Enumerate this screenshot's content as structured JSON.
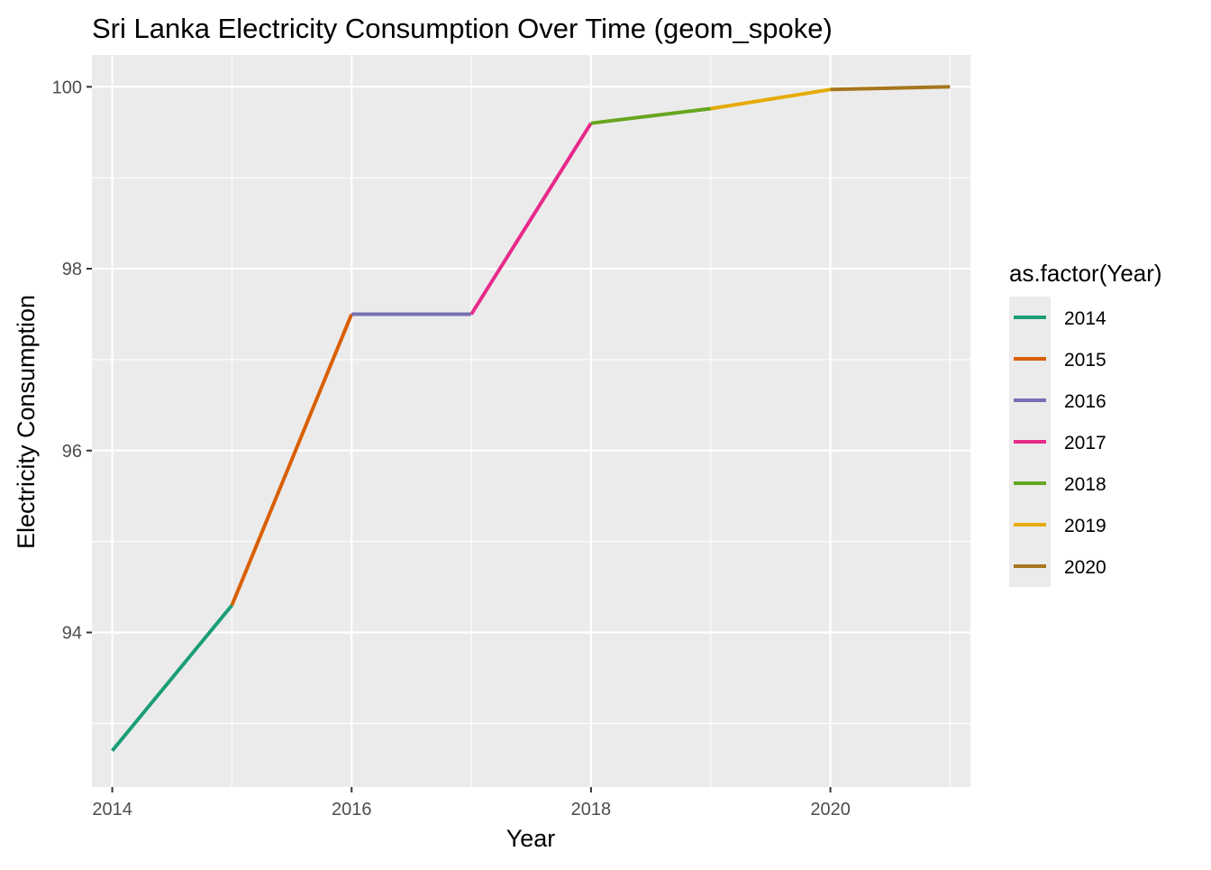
{
  "chart_data": {
    "type": "line",
    "title": "Sri Lanka Electricity Consumption Over Time (geom_spoke)",
    "xlabel": "Year",
    "ylabel": "Electricity Consumption",
    "xlim": [
      2013.83,
      2021.17
    ],
    "ylim": [
      92.3,
      100.35
    ],
    "x_ticks": [
      2014,
      2016,
      2018,
      2020
    ],
    "x_tick_labels": [
      "2014",
      "2016",
      "2018",
      "2020"
    ],
    "y_ticks": [
      94,
      96,
      98,
      100
    ],
    "y_tick_labels": [
      "94",
      "96",
      "98",
      "100"
    ],
    "x_minor": [
      2015,
      2017,
      2019,
      2021
    ],
    "y_minor": [
      93,
      95,
      97,
      99
    ],
    "grid": true,
    "panel_background": "#EBEBEB",
    "legend": {
      "title": "as.factor(Year)",
      "position": "right"
    },
    "series": [
      {
        "name": "2014",
        "color": "#1B9E77",
        "x": [
          2014,
          2015
        ],
        "y": [
          92.7,
          94.3
        ]
      },
      {
        "name": "2015",
        "color": "#D95F02",
        "x": [
          2015,
          2016
        ],
        "y": [
          94.3,
          97.5
        ]
      },
      {
        "name": "2016",
        "color": "#7570B3",
        "x": [
          2016,
          2017
        ],
        "y": [
          97.5,
          97.5
        ]
      },
      {
        "name": "2017",
        "color": "#E7298A",
        "x": [
          2017,
          2018
        ],
        "y": [
          97.5,
          99.6
        ]
      },
      {
        "name": "2018",
        "color": "#66A61E",
        "x": [
          2018,
          2019
        ],
        "y": [
          99.6,
          99.76
        ]
      },
      {
        "name": "2019",
        "color": "#E6AB02",
        "x": [
          2019,
          2020
        ],
        "y": [
          99.76,
          99.97
        ]
      },
      {
        "name": "2020",
        "color": "#A6761D",
        "x": [
          2020,
          2021
        ],
        "y": [
          99.97,
          100.0
        ]
      }
    ]
  }
}
